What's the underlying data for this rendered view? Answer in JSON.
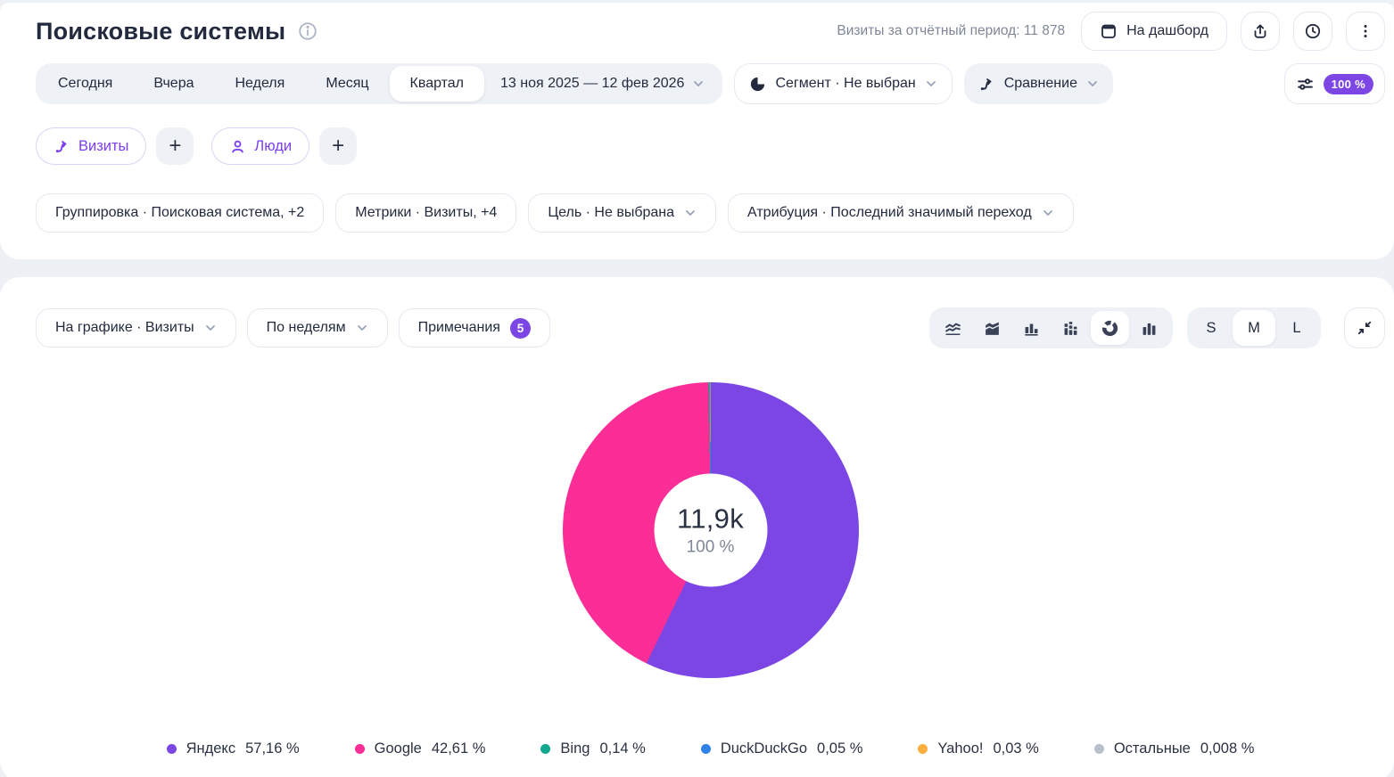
{
  "header": {
    "title": "Поисковые системы",
    "visits_summary": "Визиты за отчётный период: 11 878",
    "dashboard_button": "На дашборд"
  },
  "period_bar": {
    "tabs": [
      "Сегодня",
      "Вчера",
      "Неделя",
      "Месяц",
      "Квартал"
    ],
    "selected_tab": "Квартал",
    "date_range": "13 ноя 2025 — 12 фев 2026",
    "segment_label": "Сегмент · Не выбран",
    "comparison_label": "Сравнение",
    "sampling_badge": "100 %"
  },
  "metric_chips": {
    "visits": "Визиты",
    "people": "Люди",
    "add": "+"
  },
  "filters": {
    "grouping": "Группировка · Поисковая система, +2",
    "metrics": "Метрики · Визиты, +4",
    "goal": "Цель · Не выбрана",
    "attribution": "Атрибуция · Последний значимый переход"
  },
  "chart_controls": {
    "on_chart": "На графике · Визиты",
    "period_grouping": "По неделям",
    "notes_label": "Примечания",
    "notes_count": "5",
    "sizes": [
      "S",
      "M",
      "L"
    ],
    "selected_size": "M"
  },
  "chart_data": {
    "type": "pie",
    "title": "Поисковые системы",
    "total_visits": "11 878",
    "center_value": "11,9k",
    "center_percent": "100 %",
    "legend_position": "bottom",
    "series": [
      {
        "name": "Яндекс",
        "value": 57.16,
        "display": "57,16 %",
        "color": "#7b46e4"
      },
      {
        "name": "Google",
        "value": 42.61,
        "display": "42,61 %",
        "color": "#fb2d96"
      },
      {
        "name": "Bing",
        "value": 0.14,
        "display": "0,14 %",
        "color": "#12a88f"
      },
      {
        "name": "DuckDuckGo",
        "value": 0.05,
        "display": "0,05 %",
        "color": "#2f82e8"
      },
      {
        "name": "Yahoo!",
        "value": 0.03,
        "display": "0,03 %",
        "color": "#fcae3e"
      },
      {
        "name": "Остальные",
        "value": 0.008,
        "display": "0,008 %",
        "color": "#b8c0cd"
      }
    ]
  }
}
